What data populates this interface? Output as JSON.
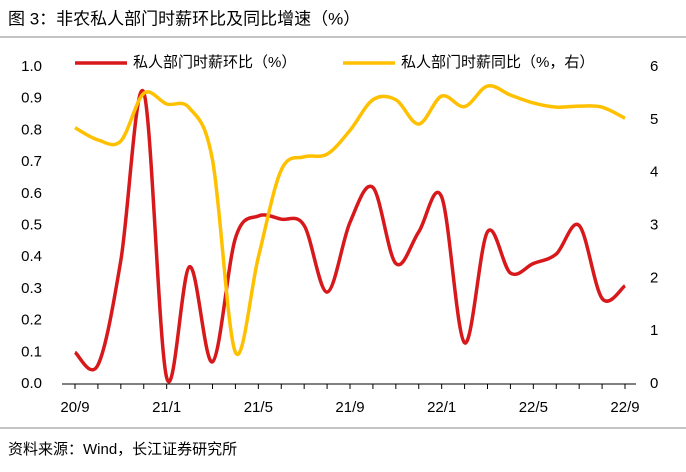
{
  "chart_data": {
    "type": "line",
    "title": "图 3：非农私人部门时薪环比及同比增速（%）",
    "source": "资料来源：Wind，长江证券研究所",
    "categories": [
      "20/9",
      null,
      null,
      null,
      "21/1",
      null,
      null,
      null,
      "21/5",
      null,
      null,
      null,
      "21/9",
      null,
      null,
      null,
      "22/1",
      null,
      null,
      null,
      "22/5",
      null,
      null,
      null,
      "22/9"
    ],
    "series": [
      {
        "name": "私人部门时薪环比（%）",
        "color": "#d7191c",
        "values": [
          0.1,
          0.06,
          0.39,
          0.92,
          0.02,
          0.37,
          0.07,
          0.46,
          0.53,
          0.52,
          0.5,
          0.29,
          0.51,
          0.62,
          0.38,
          0.48,
          0.59,
          0.13,
          0.48,
          0.35,
          0.38,
          0.41,
          0.5,
          0.27,
          0.31
        ]
      },
      {
        "name": "私人部门时薪同比（%，右）",
        "color": "#ffc000",
        "axis": "y2",
        "values": [
          4.85,
          4.62,
          4.6,
          5.5,
          5.3,
          5.22,
          4.24,
          0.6,
          2.4,
          4.05,
          4.3,
          4.35,
          4.8,
          5.38,
          5.38,
          4.92,
          5.45,
          5.25,
          5.64,
          5.47,
          5.32,
          5.24,
          5.26,
          5.24,
          5.03
        ]
      }
    ],
    "ylim": [
      0,
      1
    ],
    "yticks": [
      {
        "value": 0,
        "label": "0.0"
      },
      0.1,
      0.2,
      0.3,
      0.4,
      0.5,
      0.6,
      0.7,
      0.8,
      0.9,
      {
        "value": 1,
        "label": "1.0"
      }
    ],
    "y2lim": [
      0,
      6
    ],
    "y2ticks": [
      0,
      1,
      2,
      3,
      4,
      5,
      6
    ],
    "legend": "top"
  }
}
